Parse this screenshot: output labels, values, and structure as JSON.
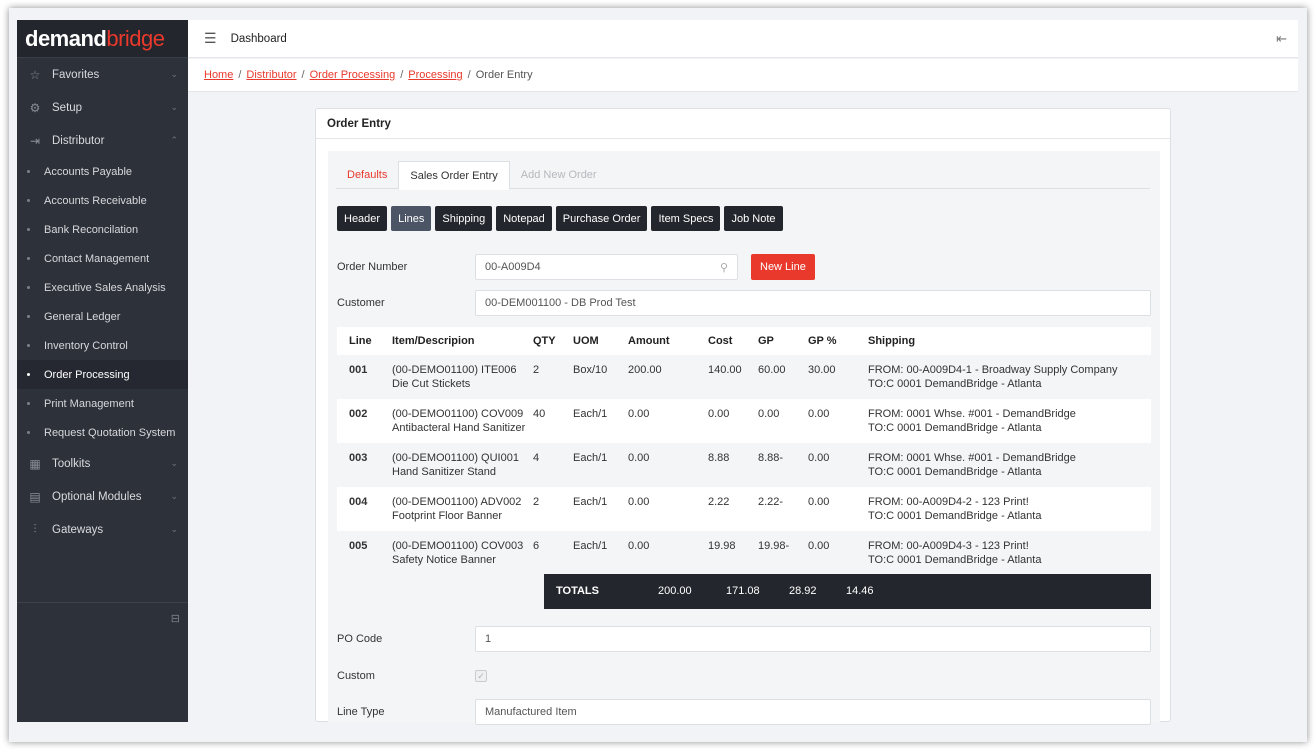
{
  "brand": {
    "part1": "demand",
    "part2": "bridge"
  },
  "sidebar": {
    "groups_top": [
      {
        "label": "Favorites",
        "icon": "star-icon"
      },
      {
        "label": "Setup",
        "icon": "gear-icon"
      },
      {
        "label": "Distributor",
        "icon": "distributor-icon"
      }
    ],
    "sub_items": [
      {
        "label": "Accounts Payable"
      },
      {
        "label": "Accounts Receivable"
      },
      {
        "label": "Bank Reconcilation"
      },
      {
        "label": "Contact Management"
      },
      {
        "label": "Executive Sales Analysis"
      },
      {
        "label": "General Ledger"
      },
      {
        "label": "Inventory Control"
      },
      {
        "label": "Order Processing"
      },
      {
        "label": "Print Management"
      },
      {
        "label": "Request Quotation System"
      }
    ],
    "groups_bottom": [
      {
        "label": "Toolkits",
        "icon": "grid-icon"
      },
      {
        "label": "Optional Modules",
        "icon": "calendar-icon"
      },
      {
        "label": "Gateways",
        "icon": "sliders-icon"
      }
    ]
  },
  "topbar": {
    "title": "Dashboard"
  },
  "breadcrumbs": {
    "home": "Home",
    "distributor": "Distributor",
    "order_processing": "Order Processing",
    "processing": "Processing",
    "current": "Order Entry",
    "separator": "/"
  },
  "card": {
    "title": "Order Entry"
  },
  "tabs": {
    "defaults": "Defaults",
    "sales_order_entry": "Sales Order Entry",
    "add_new_order": "Add New Order"
  },
  "buttons": {
    "header": "Header",
    "lines": "Lines",
    "shipping": "Shipping",
    "notepad": "Notepad",
    "purchase_order": "Purchase Order",
    "item_specs": "Item Specs",
    "job_note": "Job Note",
    "new_line": "New Line"
  },
  "form": {
    "order_number_label": "Order Number",
    "order_number_value": "00-A009D4",
    "customer_label": "Customer",
    "customer_value": "00-DEM001100 - DB Prod Test",
    "po_code_label": "PO Code",
    "po_code_value": "1",
    "custom_label": "Custom",
    "line_type_label": "Line Type",
    "line_type_value": "Manufactured Item"
  },
  "table": {
    "headers": {
      "line": "Line",
      "item": "Item/Descripion",
      "qty": "QTY",
      "uom": "UOM",
      "amount": "Amount",
      "cost": "Cost",
      "gp": "GP",
      "gp_pct": "GP %",
      "shipping": "Shipping"
    },
    "rows": [
      {
        "line": "001",
        "item": "(00-DEMO01100) ITE006",
        "desc": "Die Cut Stickets",
        "qty": "2",
        "uom": "Box/10",
        "amount": "200.00",
        "cost": "140.00",
        "gp": "60.00",
        "gp_pct": "30.00",
        "ship_from": "FROM: 00-A009D4-1 - Broadway Supply Company",
        "ship_to": "TO:C 0001 DemandBridge - Atlanta"
      },
      {
        "line": "002",
        "item": "(00-DEMO01100) COV009",
        "desc": "Antibacteral Hand Sanitizer",
        "qty": "40",
        "uom": "Each/1",
        "amount": "0.00",
        "cost": "0.00",
        "gp": "0.00",
        "gp_pct": "0.00",
        "ship_from": "FROM: 0001 Whse. #001 - DemandBridge",
        "ship_to": "TO:C 0001 DemandBridge - Atlanta"
      },
      {
        "line": "003",
        "item": "(00-DEMO01100) QUI001",
        "desc": "Hand Sanitizer Stand",
        "qty": "4",
        "uom": "Each/1",
        "amount": "0.00",
        "cost": "8.88",
        "gp": "8.88-",
        "gp_pct": "0.00",
        "ship_from": "FROM: 0001 Whse. #001 - DemandBridge",
        "ship_to": "TO:C 0001 DemandBridge - Atlanta"
      },
      {
        "line": "004",
        "item": "(00-DEMO01100) ADV002",
        "desc": "Footprint Floor Banner",
        "qty": "2",
        "uom": "Each/1",
        "amount": "0.00",
        "cost": "2.22",
        "gp": "2.22-",
        "gp_pct": "0.00",
        "ship_from": "FROM: 00-A009D4-2 - 123 Print!",
        "ship_to": "TO:C 0001 DemandBridge - Atlanta"
      },
      {
        "line": "005",
        "item": "(00-DEMO01100) COV003",
        "desc": "Safety Notice Banner",
        "qty": "6",
        "uom": "Each/1",
        "amount": "0.00",
        "cost": "19.98",
        "gp": "19.98-",
        "gp_pct": "0.00",
        "ship_from": "FROM: 00-A009D4-3 - 123 Print!",
        "ship_to": "TO:C 0001 DemandBridge - Atlanta"
      }
    ],
    "totals": {
      "label": "TOTALS",
      "amount": "200.00",
      "cost": "171.08",
      "gp": "28.92",
      "gp_pct": "14.46"
    }
  }
}
